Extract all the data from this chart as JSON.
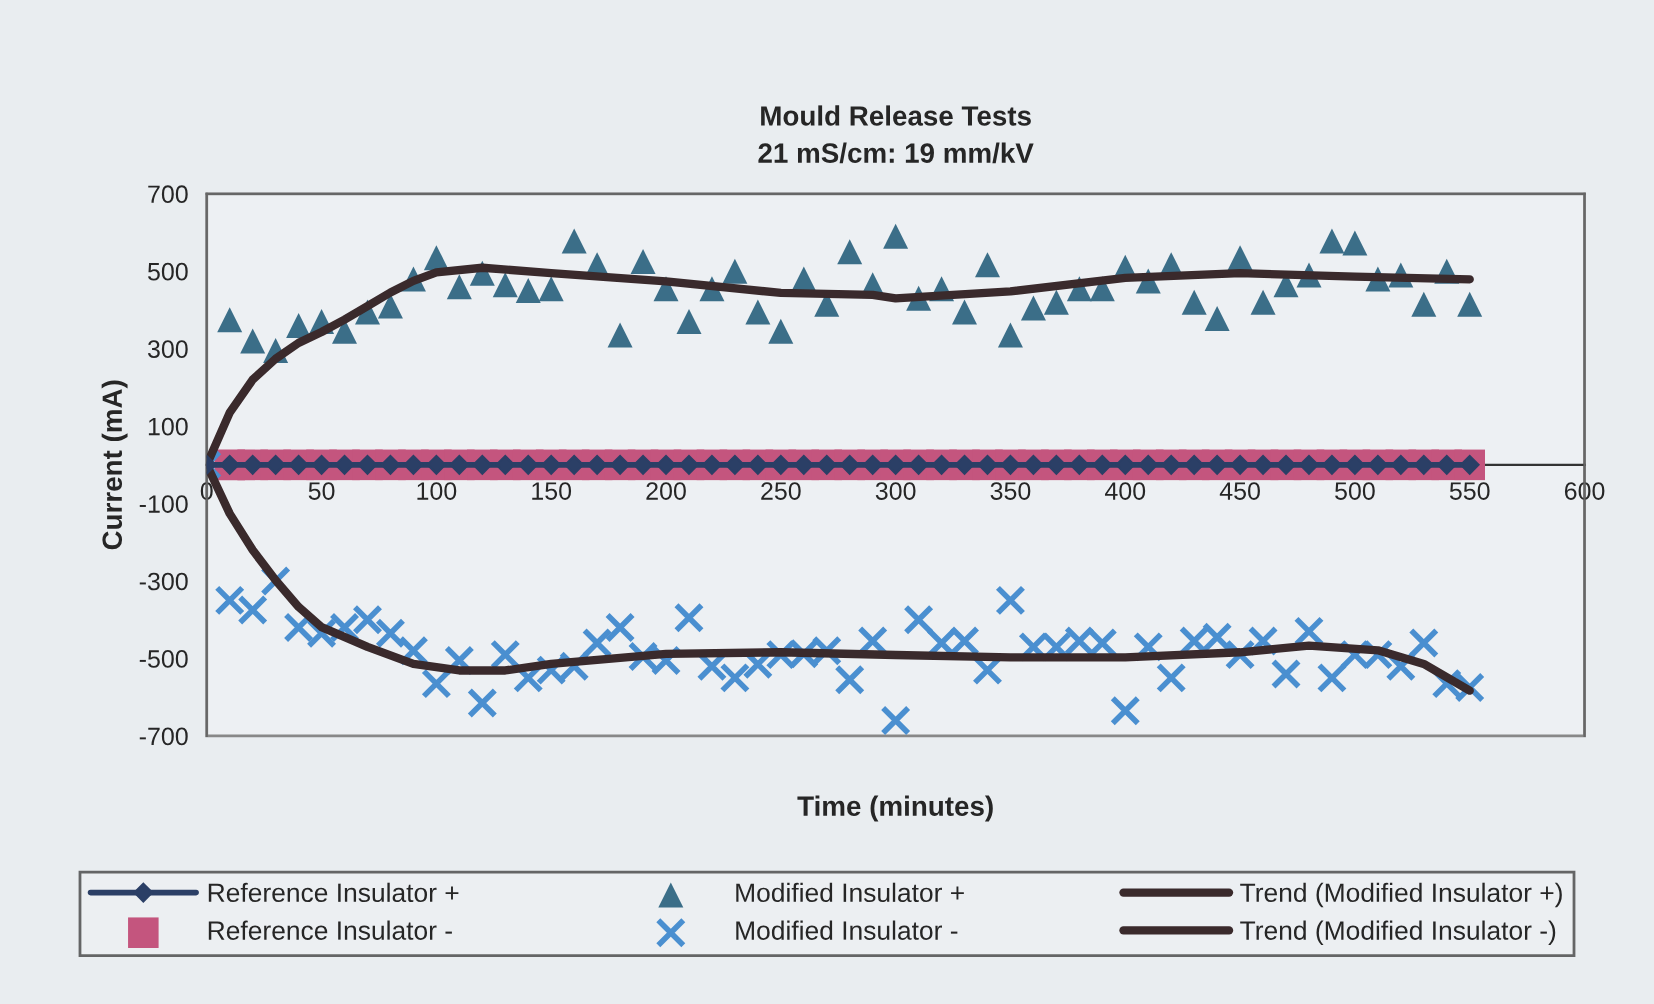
{
  "chart_data": {
    "type": "scatter",
    "title": "Mould Release Tests",
    "subtitle": "21 mS/cm: 19 mm/kV",
    "xlabel": "Time (minutes)",
    "ylabel": "Current (mA)",
    "x": [
      0,
      10,
      20,
      30,
      40,
      50,
      60,
      70,
      80,
      90,
      100,
      110,
      120,
      130,
      140,
      150,
      160,
      170,
      180,
      190,
      200,
      210,
      220,
      230,
      240,
      250,
      260,
      270,
      280,
      290,
      300,
      310,
      320,
      330,
      340,
      350,
      360,
      370,
      380,
      390,
      400,
      410,
      420,
      430,
      440,
      450,
      460,
      470,
      480,
      490,
      500,
      510,
      520,
      530,
      540,
      550
    ],
    "series": [
      {
        "name": "Reference Insulator +",
        "type": "line",
        "marker": "diamond",
        "line_style": "solid",
        "color": "#2b3f66",
        "values": [
          0,
          0,
          0,
          0,
          0,
          0,
          0,
          0,
          0,
          0,
          0,
          0,
          0,
          0,
          0,
          0,
          0,
          0,
          0,
          0,
          0,
          0,
          0,
          0,
          0,
          0,
          0,
          0,
          0,
          0,
          0,
          0,
          0,
          0,
          0,
          0,
          0,
          0,
          0,
          0,
          0,
          0,
          0,
          0,
          0,
          0,
          0,
          0,
          0,
          0,
          0,
          0,
          0,
          0,
          0,
          0
        ]
      },
      {
        "name": "Reference Insulator -",
        "marker": "square",
        "color": "#c4557e",
        "values": [
          null,
          0,
          0,
          0,
          0,
          0,
          0,
          0,
          0,
          0,
          0,
          0,
          0,
          0,
          0,
          0,
          0,
          0,
          0,
          0,
          0,
          0,
          0,
          0,
          0,
          0,
          0,
          0,
          0,
          0,
          0,
          0,
          0,
          0,
          0,
          0,
          0,
          0,
          0,
          0,
          0,
          0,
          0,
          0,
          0,
          0,
          0,
          0,
          0,
          0,
          0,
          0,
          0,
          0,
          0,
          0
        ]
      },
      {
        "name": "Modified Insulator +",
        "marker": "triangle",
        "color": "#3b6e88",
        "values": [
          null,
          375,
          320,
          295,
          360,
          370,
          345,
          395,
          410,
          480,
          535,
          460,
          495,
          465,
          450,
          455,
          578,
          517,
          335,
          525,
          455,
          370,
          455,
          500,
          395,
          345,
          480,
          415,
          550,
          465,
          590,
          430,
          455,
          395,
          517,
          335,
          405,
          420,
          455,
          455,
          510,
          475,
          517,
          420,
          378,
          535,
          420,
          465,
          490,
          578,
          573,
          480,
          490,
          415,
          500,
          415
        ]
      },
      {
        "name": "Modified Insulator -",
        "marker": "cross",
        "color": "#4a8fd0",
        "values": [
          0,
          -350,
          -375,
          -300,
          -420,
          -435,
          -420,
          -400,
          -435,
          -480,
          -565,
          -505,
          -615,
          -490,
          -550,
          -530,
          -520,
          -460,
          -420,
          -495,
          -505,
          -395,
          -520,
          -550,
          -515,
          -490,
          -488,
          -480,
          -555,
          -455,
          -660,
          -400,
          -460,
          -455,
          -530,
          -350,
          -470,
          -470,
          -455,
          -460,
          -635,
          -470,
          -550,
          -455,
          -445,
          -490,
          -455,
          -540,
          -430,
          -550,
          -490,
          -490,
          -520,
          -460,
          -565,
          -575
        ]
      },
      {
        "name": "Trend (Modified Insulator +)",
        "type": "line",
        "marker": "none",
        "line_style": "solid",
        "color": "#3a2a2c",
        "x": [
          0,
          10,
          20,
          30,
          40,
          50,
          60,
          70,
          80,
          90,
          100,
          120,
          150,
          200,
          250,
          290,
          300,
          350,
          400,
          450,
          500,
          550
        ],
        "values": [
          0,
          135,
          220,
          274,
          315,
          343,
          375,
          410,
          445,
          475,
          497,
          509,
          495,
          474,
          444,
          439,
          430,
          448,
          483,
          495,
          486,
          479
        ]
      },
      {
        "name": "Trend (Modified Insulator -)",
        "type": "line",
        "marker": "none",
        "line_style": "solid",
        "color": "#3a2a2c",
        "x": [
          0,
          10,
          20,
          30,
          40,
          50,
          70,
          90,
          110,
          130,
          150,
          200,
          250,
          300,
          350,
          400,
          450,
          480,
          510,
          530,
          550
        ],
        "values": [
          0,
          -126,
          -220,
          -298,
          -367,
          -419,
          -470,
          -514,
          -531,
          -531,
          -514,
          -488,
          -484,
          -491,
          -497,
          -497,
          -484,
          -467,
          -479,
          -514,
          -583
        ]
      }
    ],
    "xlim": [
      0,
      600
    ],
    "xticks": [
      0,
      50,
      100,
      150,
      200,
      250,
      300,
      350,
      400,
      450,
      500,
      550,
      600
    ],
    "ylim": [
      -700,
      700
    ],
    "yticks": [
      -700,
      -500,
      -300,
      -100,
      100,
      300,
      500,
      700
    ],
    "grid": false,
    "legend": "bottom"
  }
}
